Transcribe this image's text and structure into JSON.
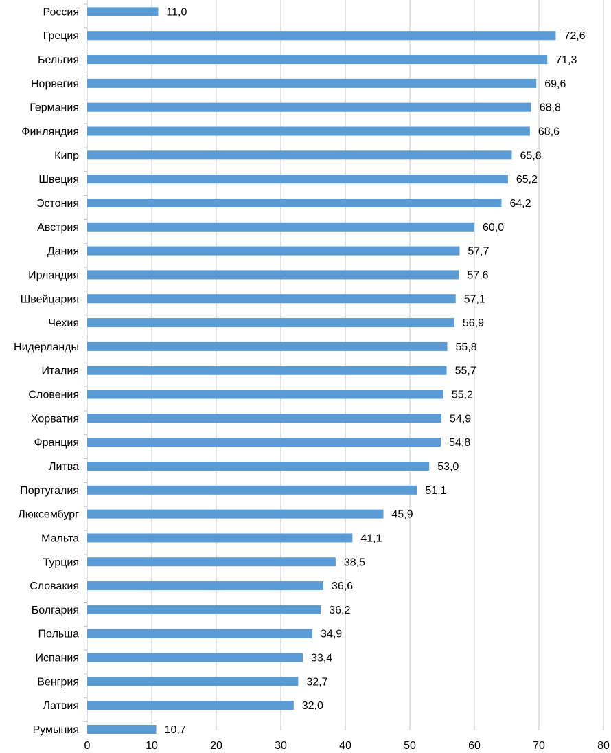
{
  "chart_data": {
    "type": "bar",
    "orientation": "horizontal",
    "categories": [
      "Россия",
      "Греция",
      "Бельгия",
      "Норвегия",
      "Германия",
      "Финляндия",
      "Кипр",
      "Швеция",
      "Эстония",
      "Австрия",
      "Дания",
      "Ирландия",
      "Швейцария",
      "Чехия",
      "Нидерланды",
      "Италия",
      "Словения",
      "Хорватия",
      "Франция",
      "Литва",
      "Португалия",
      "Люксембург",
      "Мальта",
      "Турция",
      "Словакия",
      "Болгария",
      "Польша",
      "Испания",
      "Венгрия",
      "Латвия",
      "Румыния"
    ],
    "values": [
      11.0,
      72.6,
      71.3,
      69.6,
      68.8,
      68.6,
      65.8,
      65.2,
      64.2,
      60.0,
      57.7,
      57.6,
      57.1,
      56.9,
      55.8,
      55.7,
      55.2,
      54.9,
      54.8,
      53.0,
      51.1,
      45.9,
      41.1,
      38.5,
      36.6,
      36.2,
      34.9,
      33.4,
      32.7,
      32.0,
      10.7
    ],
    "value_labels": [
      "11,0",
      "72,6",
      "71,3",
      "69,6",
      "68,8",
      "68,6",
      "65,8",
      "65,2",
      "64,2",
      "60,0",
      "57,7",
      "57,6",
      "57,1",
      "56,9",
      "55,8",
      "55,7",
      "55,2",
      "54,9",
      "54,8",
      "53,0",
      "51,1",
      "45,9",
      "41,1",
      "38,5",
      "36,6",
      "36,2",
      "34,9",
      "33,4",
      "32,7",
      "32,0",
      "10,7"
    ],
    "xlim": [
      0,
      80
    ],
    "xticks": [
      0,
      10,
      20,
      30,
      40,
      50,
      60,
      70,
      80
    ],
    "grid": true,
    "bar_color": "#5b9bd5",
    "title": "",
    "xlabel": "",
    "ylabel": ""
  }
}
